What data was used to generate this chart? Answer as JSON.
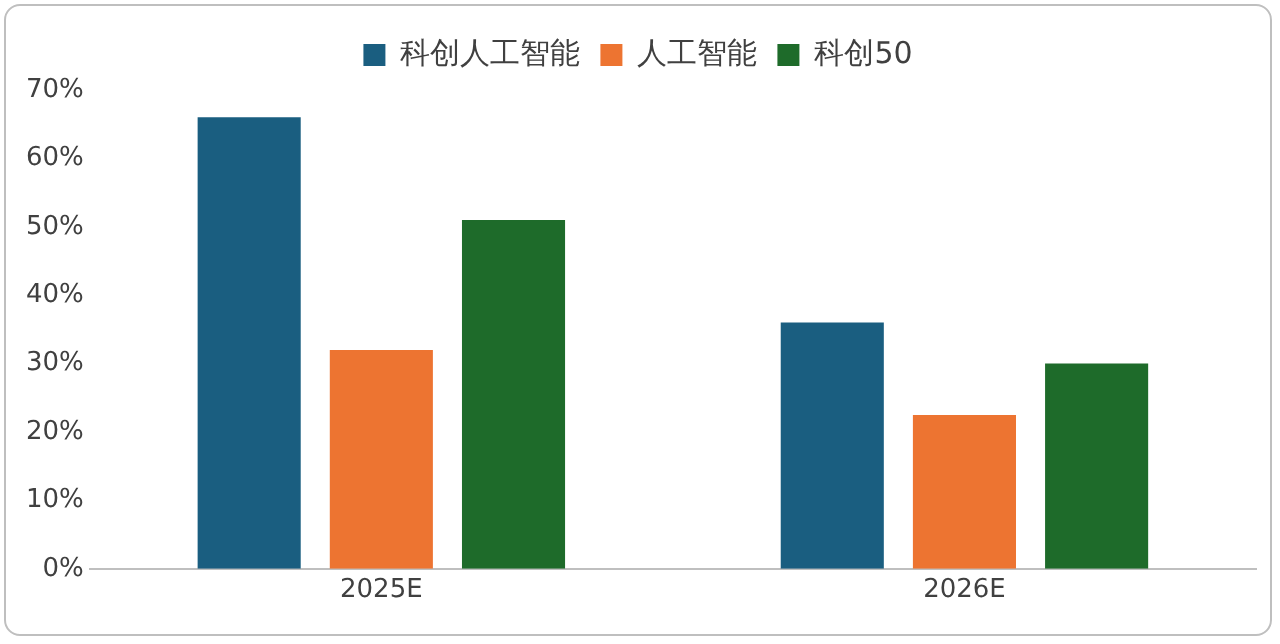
{
  "chart_data": {
    "type": "bar",
    "categories": [
      "2025E",
      "2026E"
    ],
    "series": [
      {
        "name": "科创人工智能",
        "color": "#1a5e80",
        "values": [
          66,
          36
        ]
      },
      {
        "name": "人工智能",
        "color": "#ed7431",
        "values": [
          32,
          22.5
        ]
      },
      {
        "name": "科创50",
        "color": "#1e6b2a",
        "values": [
          51,
          30
        ]
      }
    ],
    "ylim": [
      0,
      70
    ],
    "yticks": [
      {
        "value": 0,
        "label": "0%"
      },
      {
        "value": 10,
        "label": "10%"
      },
      {
        "value": 20,
        "label": "20%"
      },
      {
        "value": 30,
        "label": "30%"
      },
      {
        "value": 40,
        "label": "40%"
      },
      {
        "value": 50,
        "label": "50%"
      },
      {
        "value": 60,
        "label": "60%"
      },
      {
        "value": 70,
        "label": "70%"
      }
    ],
    "grid": false,
    "legend": "top"
  }
}
